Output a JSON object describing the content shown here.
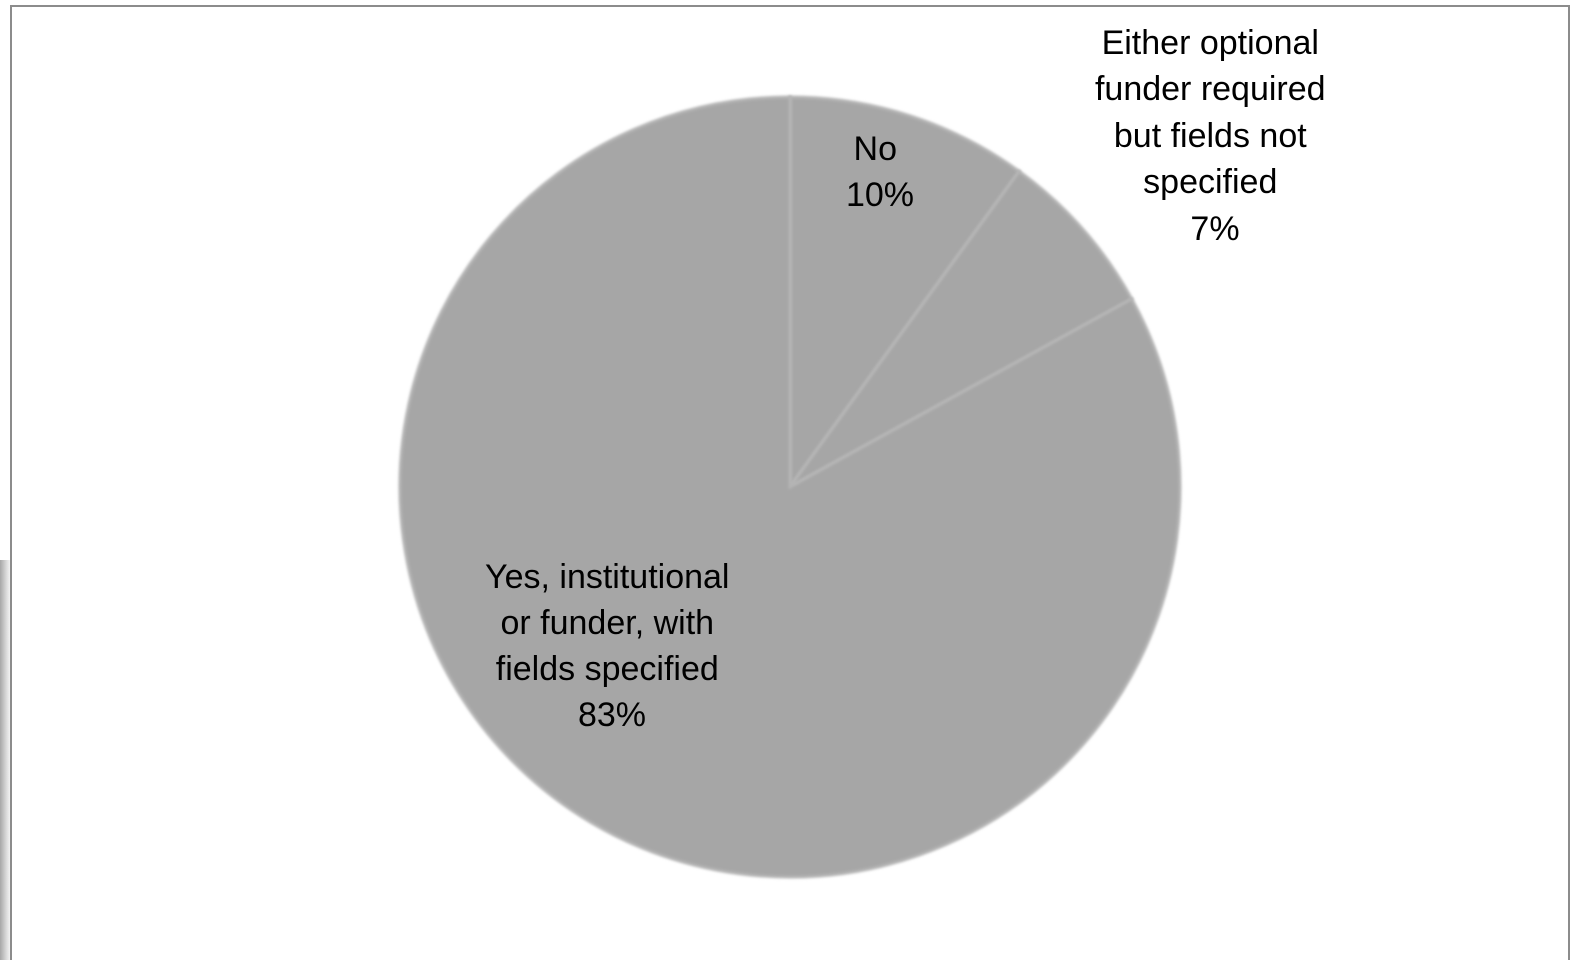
{
  "chart_data": {
    "type": "pie",
    "title": "",
    "slice_color": "#a6a6a6",
    "edge_color": "#b4b4b4",
    "slices": [
      {
        "label_lines": [
          "No",
          "10%"
        ],
        "value": 10
      },
      {
        "label_lines": [
          "Either optional",
          "funder required",
          "but fields not",
          "specified",
          "7%"
        ],
        "value": 7
      },
      {
        "label_lines": [
          "Yes, institutional",
          "or funder, with",
          "fields specified",
          "83%"
        ],
        "value": 83
      }
    ]
  }
}
